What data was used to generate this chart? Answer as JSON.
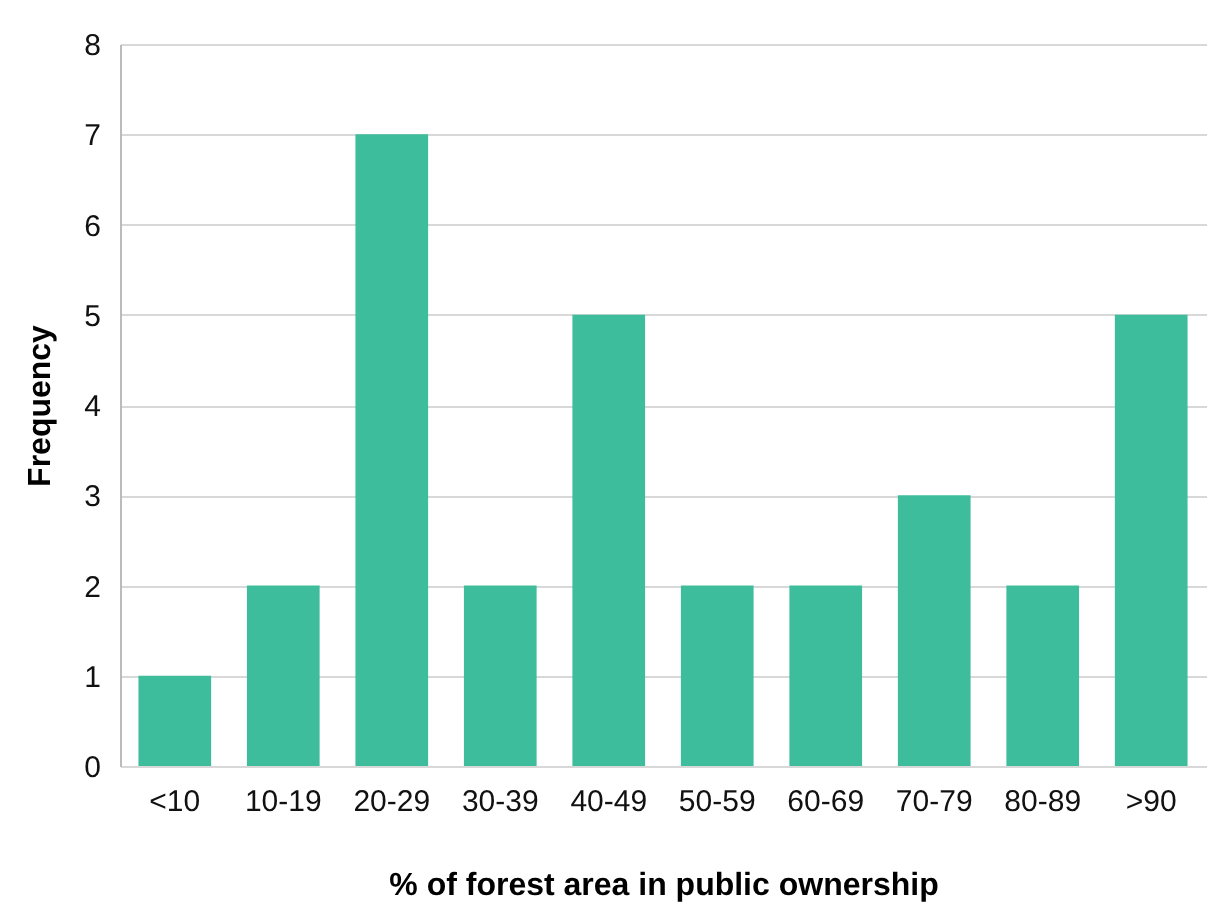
{
  "chart_data": {
    "type": "bar",
    "xlabel": "% of forest area in public ownership",
    "ylabel": "Frequency",
    "categories": [
      "<10",
      "10-19",
      "20-29",
      "30-39",
      "40-49",
      "50-59",
      "60-69",
      "70-79",
      "80-89",
      ">90"
    ],
    "values": [
      1,
      2,
      7,
      2,
      5,
      2,
      2,
      3,
      2,
      5
    ],
    "color": "#3dbd9c",
    "ylim": [
      0,
      8
    ],
    "yticks": [
      0,
      1,
      2,
      3,
      4,
      5,
      6,
      7,
      8
    ],
    "grid": "y"
  }
}
